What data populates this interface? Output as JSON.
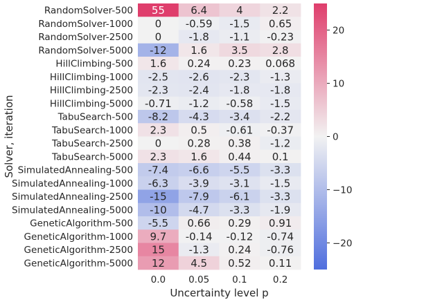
{
  "chart_data": {
    "type": "heatmap",
    "xlabel": "Uncertainty level p",
    "ylabel": "Solver, iteration",
    "x_categories": [
      "0.0",
      "0.05",
      "0.1",
      "0.2"
    ],
    "y_categories": [
      "RandomSolver-500",
      "RandomSolver-1000",
      "RandomSolver-2500",
      "RandomSolver-5000",
      "HillClimbing-500",
      "HillClimbing-1000",
      "HillClimbing-2500",
      "HillClimbing-5000",
      "TabuSearch-500",
      "TabuSearch-1000",
      "TabuSearch-2500",
      "TabuSearch-5000",
      "SimulatedAnnealing-500",
      "SimulatedAnnealing-1000",
      "SimulatedAnnealing-2500",
      "SimulatedAnnealing-5000",
      "GeneticAlgorithm-500",
      "GeneticAlgorithm-1000",
      "GeneticAlgorithm-2500",
      "GeneticAlgorithm-5000"
    ],
    "values": [
      [
        55,
        6.4,
        4,
        2.2
      ],
      [
        0,
        -0.59,
        -1.5,
        0.65
      ],
      [
        0,
        -1.8,
        -1.1,
        -0.23
      ],
      [
        -12,
        1.6,
        3.5,
        2.8
      ],
      [
        1.6,
        0.24,
        0.23,
        0.068
      ],
      [
        -2.5,
        -2.6,
        -2.3,
        -1.3
      ],
      [
        -2.3,
        -2.4,
        -1.8,
        -1.8
      ],
      [
        -0.71,
        -1.2,
        -0.58,
        -1.5
      ],
      [
        -8.2,
        -4.3,
        -3.4,
        -2.2
      ],
      [
        2.3,
        0.5,
        -0.61,
        -0.37
      ],
      [
        0,
        0.28,
        0.38,
        -1.2
      ],
      [
        2.3,
        1.6,
        0.44,
        0.1
      ],
      [
        -7.4,
        -6.6,
        -5.5,
        -3.3
      ],
      [
        -6.3,
        -3.9,
        -3.1,
        -1.5
      ],
      [
        -15,
        -7.9,
        -6.1,
        -3.3
      ],
      [
        -10,
        -4.7,
        -3.3,
        -1.9
      ],
      [
        -5.5,
        0.66,
        0.29,
        0.91
      ],
      [
        9.7,
        -0.14,
        -0.12,
        -0.74
      ],
      [
        15,
        -1.3,
        0.24,
        -0.76
      ],
      [
        12,
        4.5,
        0.52,
        0.11
      ]
    ],
    "colorbar": {
      "range": [
        -25,
        25
      ],
      "ticks": [
        -20,
        -10,
        0,
        10,
        20
      ],
      "low_color": "#4f6ede",
      "mid_color": "#f2f2f2",
      "high_color": "#df3e6c"
    }
  }
}
